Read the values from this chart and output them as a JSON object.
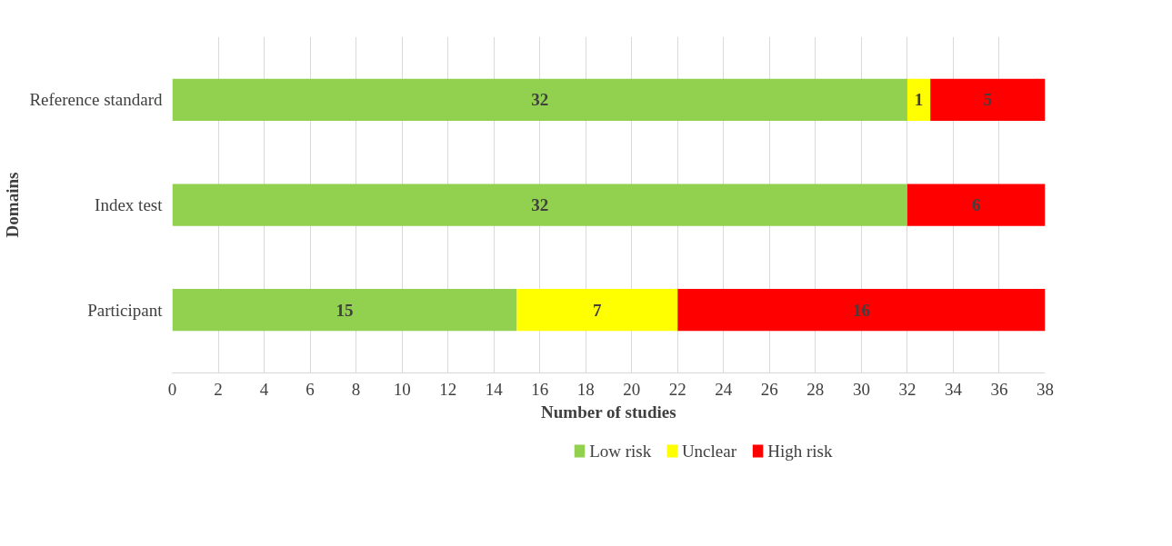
{
  "chart_data": {
    "type": "bar",
    "orientation": "horizontal",
    "stacked": true,
    "xlabel": "Number of studies",
    "ylabel": "Domains",
    "categories": [
      "Reference standard",
      "Index test",
      "Participant"
    ],
    "series": [
      {
        "name": "Low risk",
        "color": "#92d050",
        "values": [
          32,
          32,
          15
        ]
      },
      {
        "name": "Unclear",
        "color": "#ffff00",
        "values": [
          1,
          null,
          7
        ]
      },
      {
        "name": "High risk",
        "color": "#ff0000",
        "values": [
          5,
          6,
          16
        ]
      }
    ],
    "xlim": [
      0,
      38
    ],
    "xticks": [
      0,
      2,
      4,
      6,
      8,
      10,
      12,
      14,
      16,
      18,
      20,
      22,
      24,
      26,
      28,
      30,
      32,
      34,
      36,
      38
    ],
    "grid": "x",
    "legend": "bottom",
    "data_labels": true
  }
}
